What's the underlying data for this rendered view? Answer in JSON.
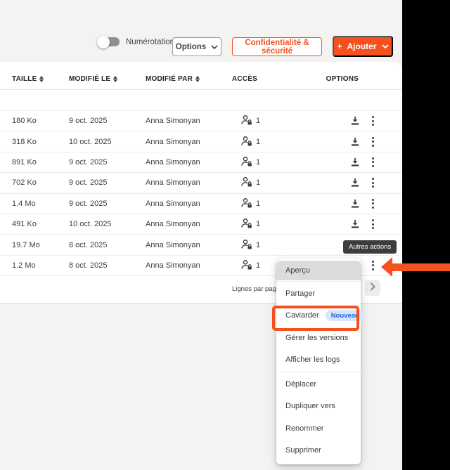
{
  "accent_color": "#f4511e",
  "toolbar": {
    "numbering_label": "Numérotation",
    "options_label": "Options",
    "privacy_label": "Confidentialité & sécurité",
    "add_label": "Ajouter",
    "add_plus": "+"
  },
  "table": {
    "headers": [
      "TAILLE",
      "MODIFIÉ LE",
      "MODIFIÉ PAR",
      "ACCÈS",
      "OPTIONS"
    ],
    "rows": [
      {
        "size": "180 Ko",
        "modified": "9 oct. 2025",
        "by": "Anna Simonyan",
        "access": "1"
      },
      {
        "size": "318 Ko",
        "modified": "10 oct. 2025",
        "by": "Anna Simonyan",
        "access": "1"
      },
      {
        "size": "891 Ko",
        "modified": "9 oct. 2025",
        "by": "Anna Simonyan",
        "access": "1"
      },
      {
        "size": "702 Ko",
        "modified": "9 oct. 2025",
        "by": "Anna Simonyan",
        "access": "1"
      },
      {
        "size": "1.4 Mo",
        "modified": "9 oct. 2025",
        "by": "Anna Simonyan",
        "access": "1"
      },
      {
        "size": "491 Ko",
        "modified": "10 oct. 2025",
        "by": "Anna Simonyan",
        "access": "1"
      },
      {
        "size": "19.7 Mo",
        "modified": "8 oct. 2025",
        "by": "Anna Simonyan",
        "access": "1"
      },
      {
        "size": "1.2 Mo",
        "modified": "8 oct. 2025",
        "by": "Anna Simonyan",
        "access": "1"
      }
    ]
  },
  "pagination": {
    "rows_per_page_label": "Lignes par page :"
  },
  "tooltip": {
    "text": "Autres actions"
  },
  "context_menu": {
    "items": [
      {
        "label": "Aperçu",
        "highlighted": true,
        "divider_after": true
      },
      {
        "label": "Partager"
      },
      {
        "label": "Caviarder",
        "badge": "Nouveau",
        "annotated": true
      },
      {
        "label": "Gérer les versions"
      },
      {
        "label": "Afficher les logs",
        "divider_after": true
      },
      {
        "label": "Déplacer"
      },
      {
        "label": "Dupliquer vers"
      },
      {
        "label": "Renommer"
      },
      {
        "label": "Supprimer"
      }
    ]
  }
}
